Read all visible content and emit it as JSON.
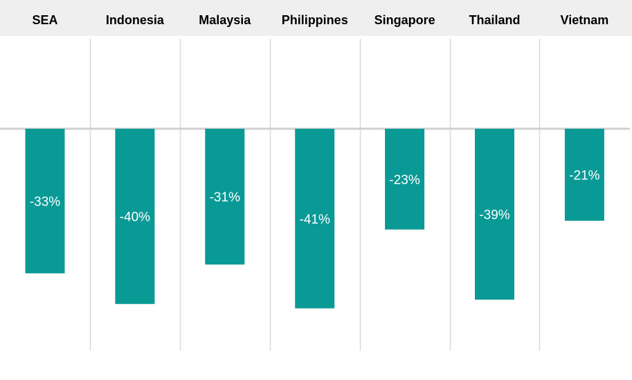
{
  "chart_data": {
    "type": "bar",
    "categories": [
      "SEA",
      "Indonesia",
      "Malaysia",
      "Philippines",
      "Singapore",
      "Thailand",
      "Vietnam"
    ],
    "values": [
      -33,
      -40,
      -31,
      -41,
      -23,
      -39,
      -21
    ],
    "value_labels": [
      "-33%",
      "-40%",
      "-31%",
      "-41%",
      "-23%",
      "-39%",
      "-21%"
    ],
    "ylim": [
      -50,
      20
    ],
    "grid": false,
    "legend": "none",
    "category_position": "top"
  },
  "colors": {
    "bar": "#0a9a96",
    "header_band": "#efefef",
    "divider": "#d9d9d9",
    "zero_line": "#d0d0d0",
    "label_text": "#ffffff",
    "category_text": "#000000"
  }
}
